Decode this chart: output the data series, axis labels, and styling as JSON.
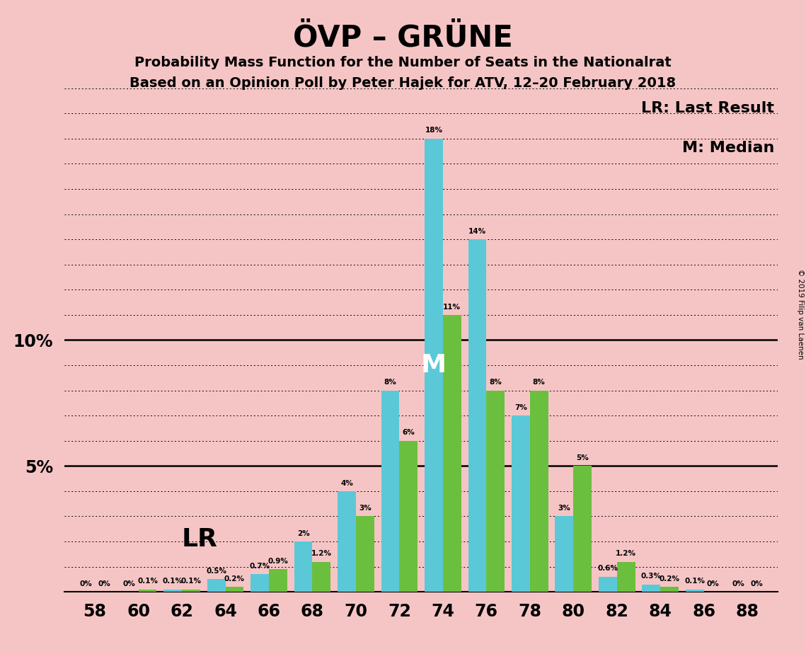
{
  "title": "ÖVP – GRÜNE",
  "subtitle1": "Probability Mass Function for the Number of Seats in the Nationalrat",
  "subtitle2": "Based on an Opinion Poll by Peter Hajek for ATV, 12–20 February 2018",
  "seats": [
    58,
    60,
    62,
    64,
    66,
    68,
    70,
    72,
    74,
    76,
    78,
    80,
    82,
    84,
    86,
    88
  ],
  "cyan_values": [
    0.0,
    0.0,
    0.1,
    0.5,
    0.7,
    2.0,
    4.0,
    8.0,
    18.0,
    14.0,
    7.0,
    3.0,
    0.6,
    0.3,
    0.1,
    0.0
  ],
  "green_values": [
    0.0,
    0.1,
    0.1,
    0.2,
    0.9,
    1.2,
    3.0,
    6.0,
    11.0,
    8.0,
    8.0,
    5.0,
    1.2,
    0.2,
    0.0,
    0.0
  ],
  "cyan_labels": [
    "0%",
    "0%",
    "0.1%",
    "0.5%",
    "0.7%",
    "2%",
    "4%",
    "8%",
    "18%",
    "14%",
    "7%",
    "3%",
    "0.6%",
    "0.3%",
    "0.1%",
    "0%"
  ],
  "green_labels": [
    "0%",
    "0.1%",
    "0.1%",
    "0.2%",
    "0.9%",
    "1.2%",
    "3%",
    "6%",
    "11%",
    "8%",
    "8%",
    "5%",
    "1.2%",
    "0.2%",
    "0%",
    "0%"
  ],
  "cyan_color": "#5BC8D8",
  "green_color": "#6BBF3E",
  "background_color": "#F5C5C5",
  "lr_seat": 62,
  "median_seat": 74,
  "lr_label": "LR",
  "median_label": "M",
  "legend_lr": "LR: Last Result",
  "legend_m": "M: Median",
  "copyright": "© 2019 Filip van Laenen",
  "ylim": [
    0,
    20
  ],
  "ylabel_ticks": [
    5,
    10
  ],
  "grid_ticks": [
    1,
    2,
    3,
    4,
    5,
    6,
    7,
    8,
    9,
    10,
    11,
    12,
    13,
    14,
    15,
    16,
    17,
    18,
    19,
    20
  ]
}
